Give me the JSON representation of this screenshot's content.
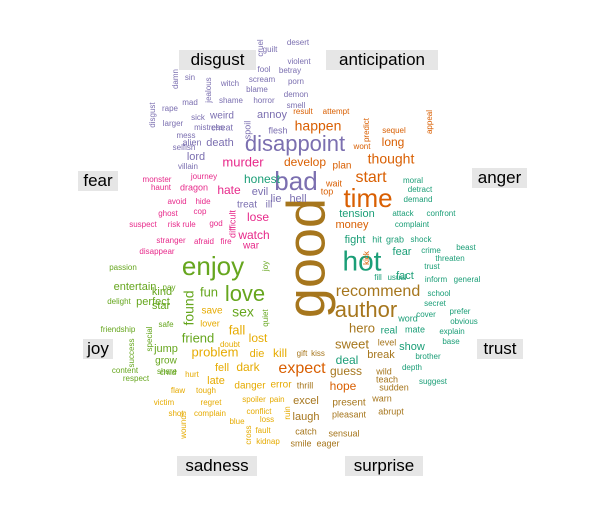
{
  "colors": {
    "disgust": "#7b6fb0",
    "anticipation": "#d95f02",
    "anger": "#d95f02",
    "trust": "#1b9e77",
    "surprise": "#a6761d",
    "sadness": "#e6ab02",
    "joy": "#66a61e",
    "fear": "#e7298a"
  },
  "labels": {
    "disgust": "disgust",
    "anticipation": "anticipation",
    "fear": "fear",
    "anger": "anger",
    "joy": "joy",
    "trust": "trust",
    "sadness": "sadness",
    "surprise": "surprise"
  },
  "words": [
    {
      "t": "good",
      "c": "surprise",
      "s": 54,
      "r": -90
    },
    {
      "t": "hot",
      "c": "trust",
      "s": 28
    },
    {
      "t": "time",
      "c": "anticipation",
      "s": 26
    },
    {
      "t": "bad",
      "c": "disgust",
      "s": 26
    },
    {
      "t": "enjoy",
      "c": "joy",
      "s": 26
    },
    {
      "t": "disappoint",
      "c": "disgust",
      "s": 22
    },
    {
      "t": "love",
      "c": "joy",
      "s": 22
    },
    {
      "t": "author",
      "c": "surprise",
      "s": 22
    },
    {
      "t": "recommend",
      "c": "surprise",
      "s": 16
    },
    {
      "t": "expect",
      "c": "anticipation",
      "s": 16
    },
    {
      "t": "start",
      "c": "anticipation",
      "s": 16
    },
    {
      "t": "thought",
      "c": "anticipation",
      "s": 14
    },
    {
      "t": "happen",
      "c": "anticipation",
      "s": 14
    },
    {
      "t": "found",
      "c": "joy",
      "s": 14,
      "r": -90
    },
    {
      "t": "sex",
      "c": "joy",
      "s": 14
    },
    {
      "t": "fun",
      "c": "joy",
      "s": 13
    },
    {
      "t": "friend",
      "c": "joy",
      "s": 13
    },
    {
      "t": "problem",
      "c": "sadness",
      "s": 13
    },
    {
      "t": "fall",
      "c": "sadness",
      "s": 13
    },
    {
      "t": "hero",
      "c": "surprise",
      "s": 13
    },
    {
      "t": "sweet",
      "c": "surprise",
      "s": 13
    },
    {
      "t": "murder",
      "c": "fear",
      "s": 13
    },
    {
      "t": "develop",
      "c": "anticipation",
      "s": 12
    },
    {
      "t": "long",
      "c": "anticipation",
      "s": 12
    },
    {
      "t": "honest",
      "c": "trust",
      "s": 12
    },
    {
      "t": "watch",
      "c": "fear",
      "s": 12
    },
    {
      "t": "lose",
      "c": "fear",
      "s": 12
    },
    {
      "t": "hate",
      "c": "fear",
      "s": 12
    },
    {
      "t": "deal",
      "c": "trust",
      "s": 12
    },
    {
      "t": "hope",
      "c": "anticipation",
      "s": 12
    },
    {
      "t": "guess",
      "c": "surprise",
      "s": 12
    },
    {
      "t": "kill",
      "c": "sadness",
      "s": 12
    },
    {
      "t": "lost",
      "c": "sadness",
      "s": 12
    },
    {
      "t": "dark",
      "c": "sadness",
      "s": 12
    },
    {
      "t": "break",
      "c": "surprise",
      "s": 11
    },
    {
      "t": "laugh",
      "c": "surprise",
      "s": 11
    },
    {
      "t": "excel",
      "c": "surprise",
      "s": 11
    },
    {
      "t": "money",
      "c": "anger",
      "s": 11
    },
    {
      "t": "tension",
      "c": "trust",
      "s": 11
    },
    {
      "t": "fight",
      "c": "trust",
      "s": 11
    },
    {
      "t": "fear",
      "c": "trust",
      "s": 11
    },
    {
      "t": "fact",
      "c": "trust",
      "s": 11
    },
    {
      "t": "show",
      "c": "trust",
      "s": 11
    },
    {
      "t": "kind",
      "c": "joy",
      "s": 11
    },
    {
      "t": "star",
      "c": "joy",
      "s": 11
    },
    {
      "t": "perfect",
      "c": "joy",
      "s": 11
    },
    {
      "t": "entertain",
      "c": "joy",
      "s": 11
    },
    {
      "t": "jump",
      "c": "joy",
      "s": 11
    },
    {
      "t": "grow",
      "c": "joy",
      "s": 10
    },
    {
      "t": "save",
      "c": "sadness",
      "s": 10
    },
    {
      "t": "lover",
      "c": "sadness",
      "s": 9
    },
    {
      "t": "die",
      "c": "sadness",
      "s": 11
    },
    {
      "t": "fell",
      "c": "sadness",
      "s": 11
    },
    {
      "t": "late",
      "c": "sadness",
      "s": 11
    },
    {
      "t": "danger",
      "c": "sadness",
      "s": 10
    },
    {
      "t": "error",
      "c": "sadness",
      "s": 10
    },
    {
      "t": "death",
      "c": "disgust",
      "s": 11
    },
    {
      "t": "lord",
      "c": "disgust",
      "s": 11
    },
    {
      "t": "evil",
      "c": "disgust",
      "s": 11
    },
    {
      "t": "lie",
      "c": "disgust",
      "s": 11
    },
    {
      "t": "hell",
      "c": "disgust",
      "s": 11
    },
    {
      "t": "treat",
      "c": "disgust",
      "s": 10
    },
    {
      "t": "ill",
      "c": "disgust",
      "s": 10
    },
    {
      "t": "annoy",
      "c": "disgust",
      "s": 11
    },
    {
      "t": "weird",
      "c": "disgust",
      "s": 10
    },
    {
      "t": "cheat",
      "c": "disgust",
      "s": 9
    },
    {
      "t": "alien",
      "c": "disgust",
      "s": 9
    },
    {
      "t": "flesh",
      "c": "disgust",
      "s": 9
    },
    {
      "t": "spoil",
      "c": "disgust",
      "s": 9,
      "r": -90
    },
    {
      "t": "plan",
      "c": "anticipation",
      "s": 10
    },
    {
      "t": "wait",
      "c": "anticipation",
      "s": 9
    },
    {
      "t": "top",
      "c": "anticipation",
      "s": 9
    },
    {
      "t": "present",
      "c": "surprise",
      "s": 10
    },
    {
      "t": "real",
      "c": "trust",
      "s": 10
    },
    {
      "t": "mate",
      "c": "trust",
      "s": 9
    },
    {
      "t": "word",
      "c": "trust",
      "s": 9
    },
    {
      "t": "level",
      "c": "surprise",
      "s": 9
    },
    {
      "t": "catch",
      "c": "surprise",
      "s": 9
    },
    {
      "t": "thrill",
      "c": "surprise",
      "s": 9
    },
    {
      "t": "pleasant",
      "c": "surprise",
      "s": 9
    },
    {
      "t": "sensual",
      "c": "surprise",
      "s": 9
    },
    {
      "t": "smile",
      "c": "surprise",
      "s": 9
    },
    {
      "t": "eager",
      "c": "surprise",
      "s": 9
    },
    {
      "t": "wild",
      "c": "surprise",
      "s": 9
    },
    {
      "t": "teach",
      "c": "surprise",
      "s": 9
    },
    {
      "t": "sudden",
      "c": "surprise",
      "s": 9
    },
    {
      "t": "warn",
      "c": "surprise",
      "s": 9
    },
    {
      "t": "abrupt",
      "c": "surprise",
      "s": 9
    },
    {
      "t": "gift",
      "c": "surprise",
      "s": 8
    },
    {
      "t": "kiss",
      "c": "surprise",
      "s": 8
    },
    {
      "t": "kick",
      "c": "anger",
      "s": 8,
      "r": -90
    },
    {
      "t": "fill",
      "c": "trust",
      "s": 8
    },
    {
      "t": "usual",
      "c": "trust",
      "s": 8
    },
    {
      "t": "hit",
      "c": "trust",
      "s": 9
    },
    {
      "t": "grab",
      "c": "trust",
      "s": 9
    },
    {
      "t": "shock",
      "c": "trust",
      "s": 8
    },
    {
      "t": "crime",
      "c": "trust",
      "s": 8
    },
    {
      "t": "threaten",
      "c": "trust",
      "s": 8
    },
    {
      "t": "beast",
      "c": "trust",
      "s": 8
    },
    {
      "t": "attack",
      "c": "trust",
      "s": 8
    },
    {
      "t": "confront",
      "c": "trust",
      "s": 8
    },
    {
      "t": "complaint",
      "c": "trust",
      "s": 8
    },
    {
      "t": "demand",
      "c": "trust",
      "s": 8
    },
    {
      "t": "detract",
      "c": "trust",
      "s": 8
    },
    {
      "t": "moral",
      "c": "trust",
      "s": 8
    },
    {
      "t": "trust",
      "c": "trust",
      "s": 8
    },
    {
      "t": "general",
      "c": "trust",
      "s": 8
    },
    {
      "t": "inform",
      "c": "trust",
      "s": 8
    },
    {
      "t": "school",
      "c": "trust",
      "s": 8
    },
    {
      "t": "secret",
      "c": "trust",
      "s": 8
    },
    {
      "t": "cover",
      "c": "trust",
      "s": 8
    },
    {
      "t": "prefer",
      "c": "trust",
      "s": 8
    },
    {
      "t": "obvious",
      "c": "trust",
      "s": 8
    },
    {
      "t": "explain",
      "c": "trust",
      "s": 8
    },
    {
      "t": "base",
      "c": "trust",
      "s": 8
    },
    {
      "t": "brother",
      "c": "trust",
      "s": 8
    },
    {
      "t": "depth",
      "c": "trust",
      "s": 8
    },
    {
      "t": "suggest",
      "c": "trust",
      "s": 8
    },
    {
      "t": "sequel",
      "c": "anticipation",
      "s": 8
    },
    {
      "t": "wont",
      "c": "anticipation",
      "s": 8
    },
    {
      "t": "predict",
      "c": "anticipation",
      "s": 8,
      "r": -90
    },
    {
      "t": "result",
      "c": "anticipation",
      "s": 8
    },
    {
      "t": "attempt",
      "c": "anticipation",
      "s": 8
    },
    {
      "t": "appeal",
      "c": "anticipation",
      "s": 8,
      "r": -90
    },
    {
      "t": "desert",
      "c": "disgust",
      "s": 8
    },
    {
      "t": "guilt",
      "c": "disgust",
      "s": 8
    },
    {
      "t": "cruel",
      "c": "disgust",
      "s": 8,
      "r": -90
    },
    {
      "t": "violent",
      "c": "disgust",
      "s": 8
    },
    {
      "t": "fool",
      "c": "disgust",
      "s": 8
    },
    {
      "t": "betray",
      "c": "disgust",
      "s": 8
    },
    {
      "t": "porn",
      "c": "disgust",
      "s": 8
    },
    {
      "t": "damn",
      "c": "disgust",
      "s": 8,
      "r": -90
    },
    {
      "t": "sin",
      "c": "disgust",
      "s": 8
    },
    {
      "t": "witch",
      "c": "disgust",
      "s": 8
    },
    {
      "t": "scream",
      "c": "disgust",
      "s": 8
    },
    {
      "t": "blame",
      "c": "disgust",
      "s": 8
    },
    {
      "t": "jealous",
      "c": "disgust",
      "s": 8,
      "r": -90
    },
    {
      "t": "mad",
      "c": "disgust",
      "s": 8
    },
    {
      "t": "sick",
      "c": "disgust",
      "s": 8
    },
    {
      "t": "demon",
      "c": "disgust",
      "s": 8
    },
    {
      "t": "smell",
      "c": "disgust",
      "s": 8
    },
    {
      "t": "shame",
      "c": "disgust",
      "s": 8
    },
    {
      "t": "horror",
      "c": "disgust",
      "s": 8
    },
    {
      "t": "rape",
      "c": "disgust",
      "s": 8
    },
    {
      "t": "disgust",
      "c": "disgust",
      "s": 8,
      "r": -90
    },
    {
      "t": "larger",
      "c": "disgust",
      "s": 8
    },
    {
      "t": "mistress",
      "c": "disgust",
      "s": 8
    },
    {
      "t": "mess",
      "c": "disgust",
      "s": 8
    },
    {
      "t": "selfish",
      "c": "disgust",
      "s": 8
    },
    {
      "t": "villain",
      "c": "disgust",
      "s": 8
    },
    {
      "t": "monster",
      "c": "fear",
      "s": 8
    },
    {
      "t": "haunt",
      "c": "fear",
      "s": 8
    },
    {
      "t": "journey",
      "c": "fear",
      "s": 8
    },
    {
      "t": "dragon",
      "c": "fear",
      "s": 9
    },
    {
      "t": "avoid",
      "c": "fear",
      "s": 8
    },
    {
      "t": "hide",
      "c": "fear",
      "s": 8
    },
    {
      "t": "ghost",
      "c": "fear",
      "s": 8
    },
    {
      "t": "cop",
      "c": "fear",
      "s": 8
    },
    {
      "t": "suspect",
      "c": "fear",
      "s": 8
    },
    {
      "t": "risk",
      "c": "fear",
      "s": 8
    },
    {
      "t": "rule",
      "c": "fear",
      "s": 8
    },
    {
      "t": "god",
      "c": "fear",
      "s": 8
    },
    {
      "t": "difficult",
      "c": "fear",
      "s": 9,
      "r": -90
    },
    {
      "t": "stranger",
      "c": "fear",
      "s": 8
    },
    {
      "t": "afraid",
      "c": "fear",
      "s": 8
    },
    {
      "t": "fire",
      "c": "fear",
      "s": 8
    },
    {
      "t": "war",
      "c": "fear",
      "s": 10
    },
    {
      "t": "disappear",
      "c": "fear",
      "s": 8
    },
    {
      "t": "passion",
      "c": "joy",
      "s": 8
    },
    {
      "t": "pay",
      "c": "joy",
      "s": 8
    },
    {
      "t": "delight",
      "c": "joy",
      "s": 8
    },
    {
      "t": "safe",
      "c": "joy",
      "s": 8
    },
    {
      "t": "friendship",
      "c": "joy",
      "s": 8
    },
    {
      "t": "special",
      "c": "joy",
      "s": 8,
      "r": -90
    },
    {
      "t": "success",
      "c": "joy",
      "s": 8,
      "r": -90
    },
    {
      "t": "content",
      "c": "joy",
      "s": 8
    },
    {
      "t": "share",
      "c": "joy",
      "s": 8
    },
    {
      "t": "respect",
      "c": "joy",
      "s": 8
    },
    {
      "t": "child",
      "c": "joy",
      "s": 8
    },
    {
      "t": "joy",
      "c": "joy",
      "s": 8,
      "r": -90
    },
    {
      "t": "quiet",
      "c": "joy",
      "s": 8,
      "r": -90
    },
    {
      "t": "doubt",
      "c": "sadness",
      "s": 8
    },
    {
      "t": "hurt",
      "c": "sadness",
      "s": 8
    },
    {
      "t": "flaw",
      "c": "sadness",
      "s": 8
    },
    {
      "t": "tough",
      "c": "sadness",
      "s": 8
    },
    {
      "t": "regret",
      "c": "sadness",
      "s": 8
    },
    {
      "t": "victim",
      "c": "sadness",
      "s": 8
    },
    {
      "t": "shot",
      "c": "sadness",
      "s": 8
    },
    {
      "t": "complain",
      "c": "sadness",
      "s": 8
    },
    {
      "t": "wounds",
      "c": "sadness",
      "s": 8,
      "r": -90
    },
    {
      "t": "spoiler",
      "c": "sadness",
      "s": 8
    },
    {
      "t": "pain",
      "c": "sadness",
      "s": 8
    },
    {
      "t": "conflict",
      "c": "sadness",
      "s": 8
    },
    {
      "t": "loss",
      "c": "sadness",
      "s": 8
    },
    {
      "t": "ruin",
      "c": "sadness",
      "s": 8,
      "r": -90
    },
    {
      "t": "fault",
      "c": "sadness",
      "s": 8
    },
    {
      "t": "blue",
      "c": "sadness",
      "s": 8
    },
    {
      "t": "kidnap",
      "c": "sadness",
      "s": 8
    },
    {
      "t": "cross",
      "c": "sadness",
      "s": 8,
      "r": -90
    }
  ]
}
